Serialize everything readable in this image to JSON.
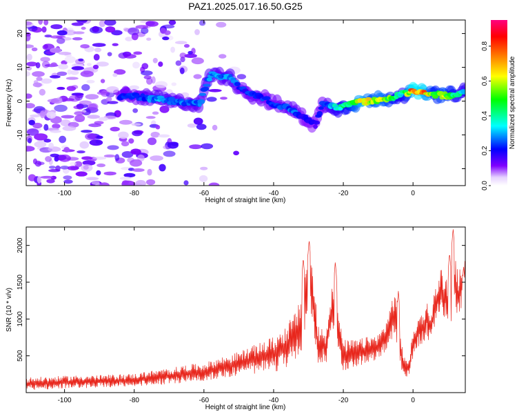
{
  "title": "PAZ1.2025.017.16.50.G25",
  "colors": {
    "snr_line": "#e8261c",
    "axis": "#000000",
    "plot_bg": "#ffffff"
  },
  "chart_data": [
    {
      "type": "heatmap",
      "xlabel": "Height of straight line (km)",
      "ylabel": "Frequency (Hz)",
      "xlim": [
        -111,
        15
      ],
      "ylim": [
        -25,
        24
      ],
      "xticks": [
        -100,
        -80,
        -60,
        -40,
        -20,
        0
      ],
      "yticks": [
        -20,
        -10,
        0,
        10,
        20
      ],
      "grid": false,
      "colorbar": {
        "label": "Normalized spectral amplitude",
        "range": [
          0,
          0.95
        ],
        "ticks": [
          0.0,
          0.2,
          0.4,
          0.6,
          0.8
        ],
        "colormap": [
          "#ffffff",
          "#7f00ff",
          "#0000ff",
          "#00ffff",
          "#00ff00",
          "#ffff00",
          "#ff7f00",
          "#ff0000",
          "#ff007f"
        ]
      },
      "ridge": {
        "x": [
          -84,
          -80,
          -76,
          -72,
          -68,
          -64,
          -61,
          -60,
          -58,
          -55,
          -52,
          -50,
          -48,
          -45,
          -42,
          -40,
          -37,
          -34,
          -31,
          -28,
          -26,
          -24,
          -21,
          -18,
          -15,
          -12,
          -9,
          -6,
          -3,
          0,
          3,
          6,
          9,
          12,
          15
        ],
        "frequency_hz": [
          1.5,
          1.5,
          0.8,
          0.5,
          -0.3,
          -0.5,
          -0.7,
          3.0,
          8.0,
          7.5,
          7.0,
          4.0,
          3.0,
          1.5,
          0.5,
          -1.0,
          -1.5,
          -3.0,
          -5.0,
          -7.0,
          -1.0,
          -1.5,
          -2.0,
          -0.8,
          -0.2,
          0.1,
          0.5,
          1.2,
          2.2,
          2.8,
          2.5,
          2.0,
          1.6,
          1.8,
          2.8
        ],
        "amplitude": [
          0.25,
          0.25,
          0.3,
          0.35,
          0.3,
          0.3,
          0.3,
          0.3,
          0.35,
          0.3,
          0.35,
          0.28,
          0.25,
          0.28,
          0.25,
          0.25,
          0.28,
          0.3,
          0.22,
          0.2,
          0.25,
          0.32,
          0.45,
          0.55,
          0.8,
          0.65,
          0.7,
          0.55,
          0.4,
          0.9,
          0.85,
          0.55,
          0.65,
          0.5,
          0.4
        ]
      },
      "noise_region_x": [
        -111,
        -45
      ],
      "noise_amplitude": 0.12
    },
    {
      "type": "line",
      "xlabel": "Height of straight line (km)",
      "ylabel": "SNR (10 * v/v)",
      "xlim": [
        -111,
        15
      ],
      "ylim": [
        0,
        2250
      ],
      "xticks": [
        -100,
        -80,
        -60,
        -40,
        -20,
        0
      ],
      "yticks": [
        500,
        1000,
        1500,
        2000
      ],
      "grid": false,
      "series": [
        {
          "x": [
            -111,
            -105,
            -100,
            -95,
            -90,
            -85,
            -80,
            -75,
            -70,
            -65,
            -60,
            -56,
            -52,
            -48,
            -44,
            -40,
            -37,
            -34,
            -32,
            -31,
            -30,
            -29,
            -28,
            -27,
            -26,
            -25,
            -24,
            -23,
            -22,
            -21,
            -20,
            -18,
            -16,
            -14,
            -12,
            -10,
            -8,
            -6,
            -5,
            -4,
            -3,
            -2,
            -1,
            0,
            1,
            2,
            3,
            4,
            5,
            6,
            7,
            8,
            9,
            10,
            11,
            12,
            13,
            14,
            15
          ],
          "y": [
            120,
            130,
            140,
            150,
            150,
            160,
            170,
            200,
            220,
            260,
            280,
            330,
            370,
            420,
            470,
            520,
            600,
            750,
            900,
            1300,
            1500,
            1350,
            900,
            600,
            650,
            600,
            900,
            1200,
            1100,
            700,
            500,
            520,
            540,
            560,
            600,
            620,
            750,
            1000,
            1100,
            750,
            420,
            300,
            380,
            650,
            800,
            850,
            900,
            1000,
            850,
            1100,
            1250,
            1400,
            1300,
            1250,
            1200,
            1500,
            1300,
            1450,
            1550
          ],
          "amplitude": [
            80,
            80,
            80,
            80,
            80,
            80,
            80,
            90,
            100,
            110,
            110,
            130,
            140,
            160,
            190,
            220,
            260,
            300,
            350,
            400,
            450,
            400,
            330,
            250,
            220,
            220,
            300,
            350,
            330,
            250,
            200,
            180,
            170,
            170,
            160,
            160,
            180,
            250,
            300,
            250,
            170,
            120,
            130,
            160,
            180,
            190,
            200,
            220,
            200,
            230,
            250,
            280,
            260,
            260,
            260,
            330,
            300,
            280,
            260
          ],
          "peaks": [
            {
              "x": -29.8,
              "y": 2080
            },
            {
              "x": -31.5,
              "y": 1830
            },
            {
              "x": -22.3,
              "y": 1780
            },
            {
              "x": 11.5,
              "y": 2230
            },
            {
              "x": 10.5,
              "y": 1900
            },
            {
              "x": -4.2,
              "y": 1380
            },
            {
              "x": 14.5,
              "y": 1720
            }
          ]
        }
      ]
    }
  ]
}
